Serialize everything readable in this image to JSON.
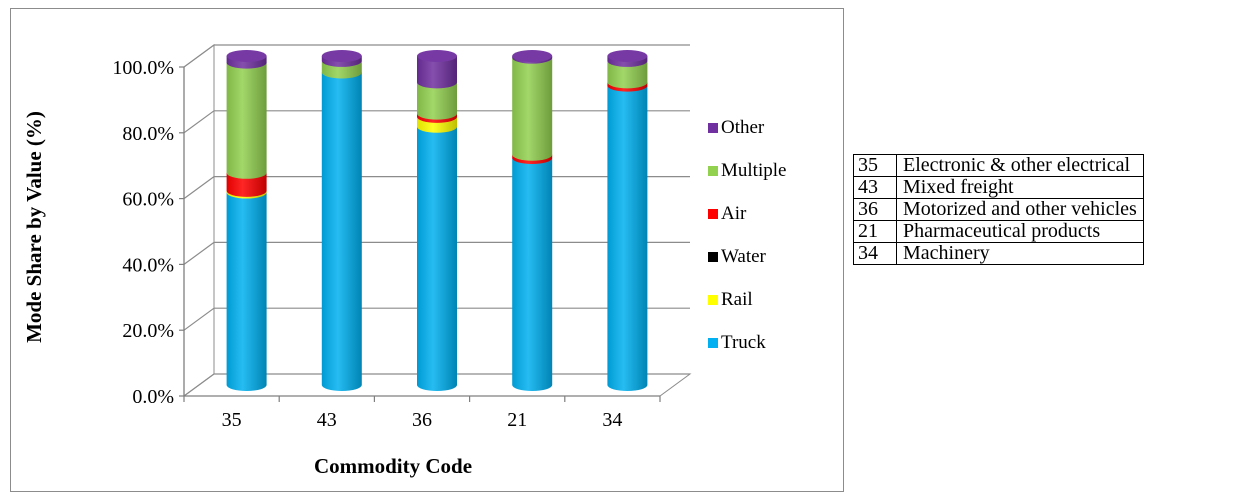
{
  "chart_data": {
    "type": "bar",
    "stacked": true,
    "style": "3d-cylinder",
    "title": "",
    "xlabel": "Commodity Code",
    "ylabel": "Mode Share by Value (%)",
    "ylim": [
      0,
      100
    ],
    "yticks": [
      "0.0%",
      "20.0%",
      "40.0%",
      "60.0%",
      "80.0%",
      "100.0%"
    ],
    "grid": true,
    "legend_position": "right",
    "categories": [
      "35",
      "43",
      "36",
      "21",
      "34"
    ],
    "series": [
      {
        "name": "Truck",
        "color": "#00b0f0",
        "values": [
          58.5,
          95.0,
          78.5,
          69.0,
          91.0
        ]
      },
      {
        "name": "Rail",
        "color": "#ffff00",
        "values": [
          0.5,
          0.0,
          3.0,
          0.0,
          0.0
        ]
      },
      {
        "name": "Water",
        "color": "#000000",
        "values": [
          0.0,
          0.0,
          0.0,
          0.0,
          0.0
        ]
      },
      {
        "name": "Air",
        "color": "#ff0000",
        "values": [
          5.5,
          0.0,
          1.0,
          1.0,
          1.0
        ]
      },
      {
        "name": "Multiple",
        "color": "#92d050",
        "values": [
          33.5,
          3.5,
          9.5,
          29.5,
          6.5
        ]
      },
      {
        "name": "Other",
        "color": "#7030a0",
        "values": [
          2.0,
          1.5,
          8.0,
          0.5,
          1.5
        ]
      }
    ]
  },
  "commodity_table": [
    {
      "code": "35",
      "name": "Electronic & other electrical"
    },
    {
      "code": "43",
      "name": "Mixed freight"
    },
    {
      "code": "36",
      "name": "Motorized and other vehicles"
    },
    {
      "code": "21",
      "name": "Pharmaceutical products"
    },
    {
      "code": "34",
      "name": "Machinery"
    }
  ]
}
